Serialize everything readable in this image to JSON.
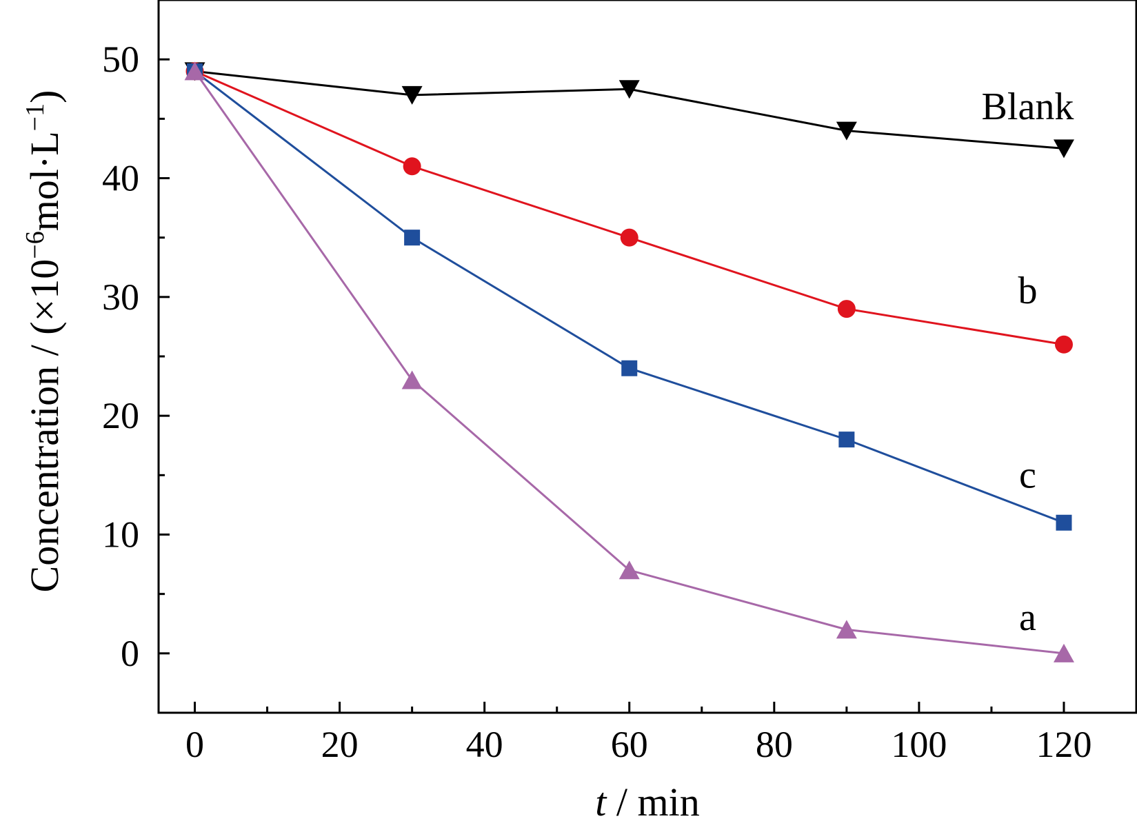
{
  "chart_data": {
    "type": "line",
    "title": "",
    "xlabel": {
      "italic_part": "t",
      "rest": " / min"
    },
    "ylabel": {
      "base": "Concentration / (×10",
      "exp1": "−6",
      "mid": "mol·L",
      "exp2": "−1",
      "end": ")"
    },
    "xlim": [
      -5,
      130
    ],
    "ylim": [
      -5,
      55
    ],
    "xticks": [
      0,
      20,
      40,
      60,
      80,
      100,
      120
    ],
    "xtick_labels": [
      "0",
      "20",
      "40",
      "60",
      "80",
      "100",
      "120"
    ],
    "yticks": [
      0,
      10,
      20,
      30,
      40,
      50
    ],
    "ytick_labels": [
      "0",
      "10",
      "20",
      "30",
      "40",
      "50"
    ],
    "x": [
      0,
      30,
      60,
      90,
      120
    ],
    "series": [
      {
        "name": "Blank",
        "values": [
          49,
          47,
          47.5,
          44,
          42.5
        ],
        "color": "#000000",
        "marker": "triangle-down",
        "label_pos": [
          115,
          46
        ]
      },
      {
        "name": "b",
        "values": [
          49,
          41,
          35,
          29,
          26
        ],
        "color": "#e0141e",
        "marker": "circle",
        "label_pos": [
          115,
          30.5
        ]
      },
      {
        "name": "c",
        "values": [
          49,
          35,
          24,
          18,
          11
        ],
        "color": "#1f4e9c",
        "marker": "square",
        "label_pos": [
          115,
          15
        ]
      },
      {
        "name": "a",
        "values": [
          49,
          23,
          7,
          2,
          0
        ],
        "color": "#a768a8",
        "marker": "triangle-up",
        "label_pos": [
          115,
          3
        ]
      }
    ],
    "grid": false,
    "legend": "none (series labelled directly at right)"
  }
}
